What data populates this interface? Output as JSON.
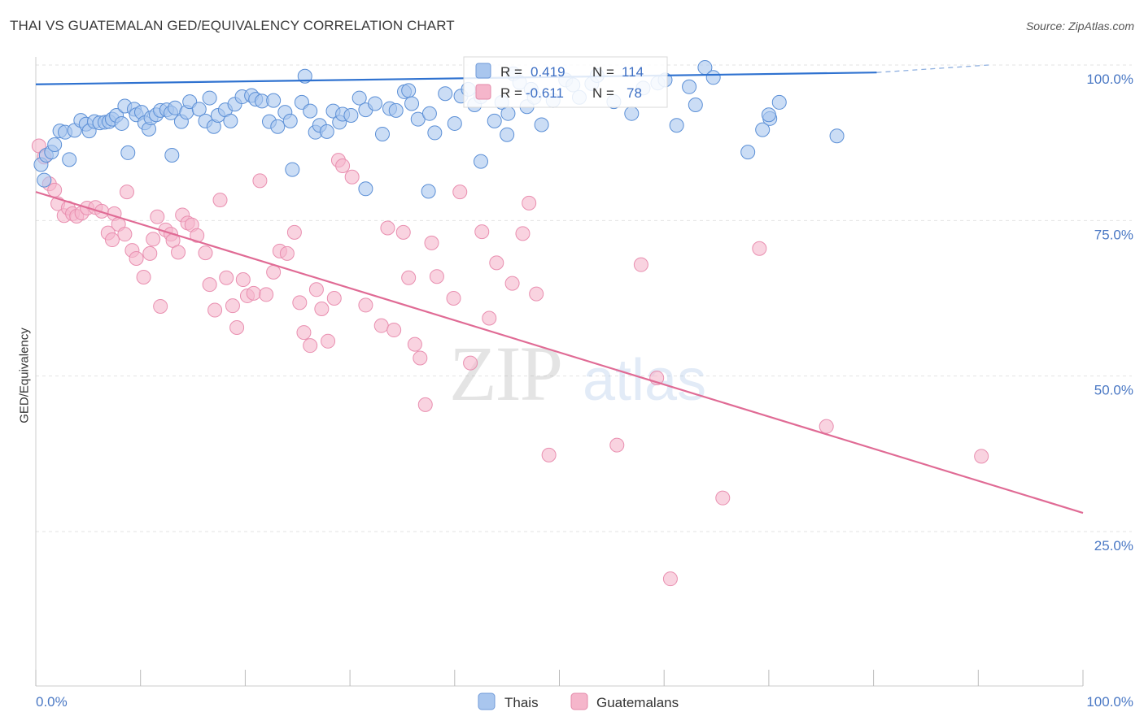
{
  "title": "THAI VS GUATEMALAN GED/EQUIVALENCY CORRELATION CHART",
  "source": "Source: ZipAtlas.com",
  "watermark": {
    "zip": "ZIP",
    "atlas": "atlas"
  },
  "colors": {
    "blue": "#5b8fd6",
    "blue_fill": "#a9c6ee",
    "pink": "#e06b95",
    "pink_fill": "#f5b6cb",
    "grid": "#e3e3e3",
    "tick_label": "#4a78c4"
  },
  "legend_box": {
    "rows": [
      {
        "r_label": "R =",
        "r_value": "0.419",
        "n_label": "N =",
        "n_value": "114"
      },
      {
        "r_label": "R =",
        "r_value": "-0.611",
        "n_label": "N =",
        "n_value": "78"
      }
    ]
  },
  "bottom_legend": [
    "Thais",
    "Guatemalans"
  ],
  "chart_data": {
    "type": "scatter",
    "title": "THAI VS GUATEMALAN GED/EQUIVALENCY CORRELATION CHART",
    "xlabel": "",
    "ylabel": "GED/Equivalency",
    "xlim": [
      0,
      100
    ],
    "ylim": [
      0,
      103
    ],
    "x_tick_labels": [
      "0.0%",
      "100.0%"
    ],
    "y_tick_labels": [
      "25.0%",
      "50.0%",
      "75.0%",
      "100.0%"
    ],
    "y_ticks": [
      25,
      50,
      75,
      100
    ],
    "grid": true,
    "legend": "bottom-center",
    "series": [
      {
        "name": "Thais",
        "r": 0.419,
        "n": 114,
        "trend": {
          "x": [
            0,
            80.3
          ],
          "y": [
            96.9,
            98.8
          ],
          "dashed_to": [
            91,
            100
          ]
        },
        "points": [
          [
            0.5,
            84
          ],
          [
            0.8,
            81.5
          ],
          [
            1.0,
            85.5
          ],
          [
            1.5,
            86.0
          ],
          [
            1.8,
            87.2
          ],
          [
            2.3,
            89.4
          ],
          [
            2.8,
            89.2
          ],
          [
            3.2,
            84.8
          ],
          [
            3.7,
            89.5
          ],
          [
            4.3,
            91.1
          ],
          [
            4.8,
            90.5
          ],
          [
            5.1,
            89.4
          ],
          [
            5.6,
            90.9
          ],
          [
            6.1,
            90.7
          ],
          [
            6.6,
            90.8
          ],
          [
            7.0,
            90.9
          ],
          [
            7.3,
            91.3
          ],
          [
            7.7,
            91.9
          ],
          [
            8.2,
            90.6
          ],
          [
            8.5,
            93.4
          ],
          [
            8.8,
            85.9
          ],
          [
            9.4,
            92.9
          ],
          [
            9.6,
            92.0
          ],
          [
            10.1,
            92.4
          ],
          [
            10.4,
            90.7
          ],
          [
            10.8,
            89.7
          ],
          [
            11.0,
            91.5
          ],
          [
            11.5,
            92.0
          ],
          [
            11.9,
            92.7
          ],
          [
            12.5,
            92.8
          ],
          [
            12.9,
            92.3
          ],
          [
            13.3,
            93.1
          ],
          [
            13.9,
            90.9
          ],
          [
            14.4,
            92.4
          ],
          [
            14.7,
            94.1
          ],
          [
            15.6,
            92.9
          ],
          [
            16.2,
            91.0
          ],
          [
            16.6,
            94.7
          ],
          [
            17.0,
            90.1
          ],
          [
            17.4,
            91.9
          ],
          [
            18.1,
            92.8
          ],
          [
            18.6,
            91.0
          ],
          [
            19.0,
            93.7
          ],
          [
            19.7,
            94.9
          ],
          [
            20.6,
            95.1
          ],
          [
            21.0,
            94.5
          ],
          [
            21.6,
            94.2
          ],
          [
            22.3,
            90.9
          ],
          [
            22.7,
            94.3
          ],
          [
            23.1,
            90.1
          ],
          [
            23.8,
            92.4
          ],
          [
            24.3,
            91.0
          ],
          [
            25.4,
            94.0
          ],
          [
            25.7,
            98.2
          ],
          [
            26.2,
            92.6
          ],
          [
            26.7,
            89.2
          ],
          [
            27.1,
            90.3
          ],
          [
            27.8,
            89.3
          ],
          [
            28.4,
            92.6
          ],
          [
            29.0,
            90.8
          ],
          [
            29.3,
            92.1
          ],
          [
            30.1,
            91.9
          ],
          [
            30.9,
            94.7
          ],
          [
            31.5,
            92.8
          ],
          [
            32.4,
            93.8
          ],
          [
            33.1,
            88.9
          ],
          [
            33.8,
            93.0
          ],
          [
            34.4,
            92.7
          ],
          [
            35.2,
            95.7
          ],
          [
            35.6,
            95.9
          ],
          [
            35.9,
            93.8
          ],
          [
            36.5,
            91.3
          ],
          [
            37.6,
            92.2
          ],
          [
            38.1,
            89.1
          ],
          [
            39.1,
            95.4
          ],
          [
            40.0,
            90.6
          ],
          [
            40.6,
            95.0
          ],
          [
            41.3,
            96.1
          ],
          [
            41.9,
            93.6
          ],
          [
            42.5,
            94.9
          ],
          [
            43.8,
            91.0
          ],
          [
            44.5,
            94.0
          ],
          [
            45.1,
            92.2
          ],
          [
            45.6,
            98.6
          ],
          [
            46.2,
            97.2
          ],
          [
            46.9,
            93.3
          ],
          [
            47.3,
            96.1
          ],
          [
            47.6,
            94.8
          ],
          [
            48.3,
            90.4
          ],
          [
            49.4,
            94.3
          ],
          [
            50.6,
            97.6
          ],
          [
            51.3,
            96.8
          ],
          [
            51.9,
            94.8
          ],
          [
            53.1,
            97.0
          ],
          [
            53.6,
            98.3
          ],
          [
            55.2,
            94.1
          ],
          [
            56.9,
            92.2
          ],
          [
            58.0,
            96.3
          ],
          [
            59.4,
            97.1
          ],
          [
            60.1,
            97.6
          ],
          [
            61.2,
            90.3
          ],
          [
            62.4,
            96.5
          ],
          [
            63.0,
            93.6
          ],
          [
            63.9,
            99.6
          ],
          [
            64.7,
            98.0
          ],
          [
            69.4,
            89.6
          ],
          [
            70.1,
            91.4
          ],
          [
            71.0,
            94.0
          ],
          [
            76.5,
            88.6
          ],
          [
            13.0,
            85.5
          ],
          [
            24.5,
            83.2
          ],
          [
            31.5,
            80.1
          ],
          [
            37.5,
            79.7
          ],
          [
            42.5,
            84.5
          ],
          [
            45.0,
            88.8
          ],
          [
            68.0,
            86.0
          ],
          [
            70.0,
            92.0
          ]
        ]
      },
      {
        "name": "Guatemalans",
        "r": -0.611,
        "n": 78,
        "trend": {
          "x": [
            0,
            100
          ],
          "y": [
            79.6,
            28.0
          ]
        },
        "points": [
          [
            0.3,
            87.0
          ],
          [
            0.8,
            85.2
          ],
          [
            1.3,
            80.9
          ],
          [
            1.8,
            79.9
          ],
          [
            2.1,
            77.7
          ],
          [
            2.7,
            75.8
          ],
          [
            3.1,
            77.0
          ],
          [
            3.5,
            76.1
          ],
          [
            3.9,
            75.7
          ],
          [
            4.4,
            76.2
          ],
          [
            4.9,
            77.0
          ],
          [
            5.7,
            77.1
          ],
          [
            6.3,
            76.5
          ],
          [
            6.9,
            73.0
          ],
          [
            7.3,
            71.9
          ],
          [
            7.5,
            76.1
          ],
          [
            7.9,
            74.4
          ],
          [
            8.5,
            72.8
          ],
          [
            8.7,
            79.6
          ],
          [
            9.2,
            70.2
          ],
          [
            9.6,
            68.9
          ],
          [
            10.3,
            65.9
          ],
          [
            10.9,
            69.7
          ],
          [
            11.2,
            72.0
          ],
          [
            11.6,
            75.6
          ],
          [
            11.9,
            61.2
          ],
          [
            12.4,
            73.5
          ],
          [
            12.9,
            72.8
          ],
          [
            13.1,
            71.8
          ],
          [
            13.6,
            69.9
          ],
          [
            14.0,
            75.9
          ],
          [
            14.5,
            74.6
          ],
          [
            14.9,
            74.3
          ],
          [
            15.4,
            72.6
          ],
          [
            16.2,
            69.8
          ],
          [
            16.6,
            64.7
          ],
          [
            17.1,
            60.6
          ],
          [
            17.6,
            78.3
          ],
          [
            18.2,
            65.8
          ],
          [
            18.8,
            61.3
          ],
          [
            19.2,
            57.8
          ],
          [
            19.8,
            65.5
          ],
          [
            20.2,
            62.9
          ],
          [
            20.8,
            63.3
          ],
          [
            21.4,
            81.4
          ],
          [
            22.0,
            63.1
          ],
          [
            22.7,
            66.7
          ],
          [
            23.3,
            70.1
          ],
          [
            24.0,
            69.7
          ],
          [
            24.7,
            73.1
          ],
          [
            25.2,
            61.8
          ],
          [
            25.6,
            57.0
          ],
          [
            26.2,
            54.9
          ],
          [
            26.8,
            63.9
          ],
          [
            27.3,
            60.8
          ],
          [
            27.9,
            55.6
          ],
          [
            28.5,
            62.5
          ],
          [
            28.9,
            84.7
          ],
          [
            29.3,
            83.8
          ],
          [
            30.2,
            82.0
          ],
          [
            31.5,
            61.4
          ],
          [
            33.0,
            58.1
          ],
          [
            33.6,
            73.8
          ],
          [
            34.2,
            57.4
          ],
          [
            35.1,
            73.1
          ],
          [
            35.6,
            65.8
          ],
          [
            36.2,
            55.1
          ],
          [
            36.7,
            52.9
          ],
          [
            37.2,
            45.4
          ],
          [
            37.8,
            71.4
          ],
          [
            38.3,
            66.0
          ],
          [
            39.9,
            62.5
          ],
          [
            40.5,
            79.6
          ],
          [
            41.5,
            52.1
          ],
          [
            42.6,
            73.2
          ],
          [
            43.3,
            59.3
          ],
          [
            44.0,
            68.2
          ],
          [
            45.5,
            64.9
          ],
          [
            46.5,
            72.9
          ],
          [
            47.1,
            77.8
          ],
          [
            47.8,
            63.2
          ],
          [
            49.0,
            37.3
          ],
          [
            55.5,
            38.9
          ],
          [
            57.8,
            67.9
          ],
          [
            59.3,
            49.7
          ],
          [
            60.6,
            17.4
          ],
          [
            65.6,
            30.4
          ],
          [
            69.1,
            70.5
          ],
          [
            75.5,
            41.9
          ],
          [
            90.3,
            37.1
          ]
        ]
      }
    ]
  }
}
